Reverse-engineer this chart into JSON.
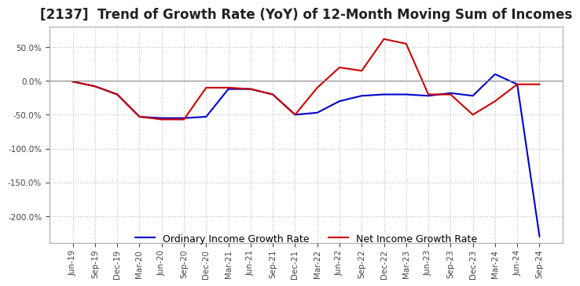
{
  "title": "[2137]  Trend of Growth Rate (YoY) of 12-Month Moving Sum of Incomes",
  "title_fontsize": 12,
  "ylim": [
    -240,
    80
  ],
  "yticks": [
    50,
    0,
    -50,
    -100,
    -150,
    -200
  ],
  "background_color": "#ffffff",
  "grid_color": "#bbbbbb",
  "ordinary_color": "#0000cc",
  "net_color": "#cc0000",
  "x_labels": [
    "Jun-19",
    "Sep-19",
    "Dec-19",
    "Mar-20",
    "Jun-20",
    "Sep-20",
    "Dec-20",
    "Mar-21",
    "Jun-21",
    "Sep-21",
    "Dec-21",
    "Mar-22",
    "Jun-22",
    "Sep-22",
    "Dec-22",
    "Mar-23",
    "Jun-23",
    "Sep-23",
    "Dec-23",
    "Mar-24",
    "Jun-24",
    "Sep-24"
  ],
  "ordinary_income": [
    -1,
    -8,
    -20,
    -53,
    -55,
    -55,
    -53,
    -12,
    -12,
    -20,
    -50,
    -47,
    -30,
    -22,
    -20,
    -20,
    -22,
    -18,
    -22,
    10,
    -5,
    -230
  ],
  "net_income": [
    -1,
    -8,
    -20,
    -53,
    -57,
    -57,
    -10,
    -10,
    -12,
    -20,
    -50,
    -10,
    20,
    15,
    62,
    55,
    -20,
    -20,
    -50,
    -30,
    -5,
    -5
  ],
  "legend_ordinary": "Ordinary Income Growth Rate",
  "legend_net": "Net Income Growth Rate"
}
